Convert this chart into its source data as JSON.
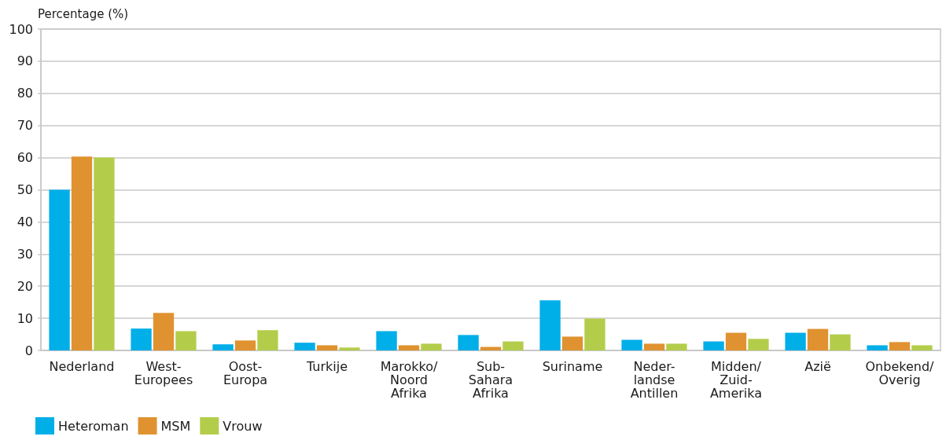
{
  "chart_data": {
    "type": "bar",
    "ylabel": "Percentage (%)",
    "categories": [
      "Nederland",
      "West-\nEuropees",
      "Oost-\nEuropa",
      "Turkije",
      "Marokko/\nNoord\nAfrika",
      "Sub-\nSahara\nAfrika",
      "Suriname",
      "Neder-\nlandse\nAntillen",
      "Midden/\nZuid-\nAmerika",
      "Azië",
      "Onbekend/\nOverig"
    ],
    "series": [
      {
        "name": "Heteroman",
        "color": "#00aee8",
        "values": [
          50.0,
          6.8,
          1.9,
          2.4,
          6.0,
          4.8,
          15.6,
          3.3,
          2.8,
          5.5,
          1.6
        ]
      },
      {
        "name": "MSM",
        "color": "#e09230",
        "values": [
          60.3,
          11.7,
          3.1,
          1.6,
          1.6,
          1.1,
          4.3,
          2.1,
          5.5,
          6.7,
          2.6
        ]
      },
      {
        "name": "Vrouw",
        "color": "#b3cd4a",
        "values": [
          60.0,
          6.0,
          6.3,
          0.9,
          2.1,
          2.8,
          9.9,
          2.1,
          3.6,
          5.0,
          1.6
        ]
      }
    ],
    "ylim": [
      0,
      100
    ],
    "yticks": [
      0,
      10,
      20,
      30,
      40,
      50,
      60,
      70,
      80,
      90,
      100
    ],
    "grid": true,
    "legend": "bottom left"
  }
}
